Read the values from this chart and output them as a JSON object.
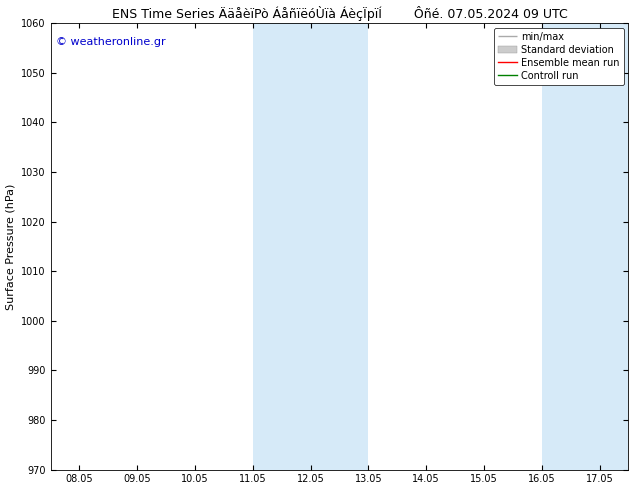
{
  "title_left": "ENS Time Series ÄäåèïPò ÁåñïëóÙïà ÁèçÏpïÍ",
  "title_right": "Ôñé. 07.05.2024 09 UTC",
  "ylabel": "Surface Pressure (hPa)",
  "ylim": [
    970,
    1060
  ],
  "yticks": [
    970,
    980,
    990,
    1000,
    1010,
    1020,
    1030,
    1040,
    1050,
    1060
  ],
  "xtick_labels": [
    "08.05",
    "09.05",
    "10.05",
    "11.05",
    "12.05",
    "13.05",
    "14.05",
    "15.05",
    "16.05",
    "17.05"
  ],
  "xtick_positions": [
    0,
    1,
    2,
    3,
    4,
    5,
    6,
    7,
    8,
    9
  ],
  "xlim": [
    -0.5,
    9.5
  ],
  "watermark": "© weatheronline.gr",
  "watermark_color": "#0000cc",
  "bg_color": "#ffffff",
  "plot_bg_color": "#ffffff",
  "shaded_regions": [
    {
      "x_start": 3,
      "x_end": 5,
      "color": "#d6eaf8"
    },
    {
      "x_start": 8,
      "x_end": 9.5,
      "color": "#d6eaf8"
    }
  ],
  "legend_labels": [
    "min/max",
    "Standard deviation",
    "Ensemble mean run",
    "Controll run"
  ],
  "legend_colors": [
    "#aaaaaa",
    "#cccccc",
    "#ff0000",
    "#008000"
  ],
  "font_size_title": 9,
  "font_size_axis": 8,
  "font_size_ticks": 7,
  "font_size_legend": 7,
  "font_size_watermark": 8
}
